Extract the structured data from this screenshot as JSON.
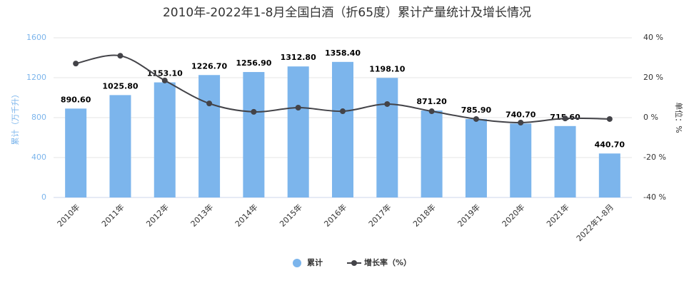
{
  "chart_data": {
    "type": "bar-line",
    "title": "2010年-2022年1-8月全国白酒（折65度）累计产量统计及增长情况",
    "categories": [
      "2010年",
      "2011年",
      "2012年",
      "2013年",
      "2014年",
      "2015年",
      "2016年",
      "2017年",
      "2018年",
      "2019年",
      "2020年",
      "2021年",
      "2022年1-8月"
    ],
    "y_label": "累计（万千升）",
    "y2_label": "单位：%",
    "series": [
      {
        "name": "累计",
        "type": "bar",
        "color": "#7cb5ec",
        "values": [
          890.6,
          1025.8,
          1153.1,
          1226.7,
          1256.9,
          1312.8,
          1358.4,
          1198.1,
          871.2,
          785.9,
          740.7,
          715.6,
          440.7
        ],
        "value_labels": [
          "890.60",
          "1025.80",
          "1153.10",
          "1226.70",
          "1256.90",
          "1312.80",
          "1358.40",
          "1198.10",
          "871.20",
          "785.90",
          "740.70",
          "715.60",
          "440.70"
        ]
      },
      {
        "name": "增长率（%）",
        "type": "line",
        "axis": "y2",
        "color": "#434348",
        "values": [
          27.1,
          31,
          18.6,
          7.1,
          2.9,
          5,
          3.2,
          6.8,
          3.2,
          -0.7,
          -2.5,
          -0.4,
          -0.7
        ]
      }
    ],
    "ylim": [
      0,
      1600
    ],
    "yticks": [
      0,
      400,
      800,
      1200,
      1600
    ],
    "y2lim": [
      -40,
      40
    ],
    "y2ticks": [
      {
        "value": -40,
        "label": "-40 %"
      },
      {
        "value": -20,
        "label": "-20 %"
      },
      {
        "value": 0,
        "label": "0 %"
      },
      {
        "value": 20,
        "label": "20 %"
      },
      {
        "value": 40,
        "label": "40 %"
      }
    ],
    "grid": true,
    "legend": "bottom"
  }
}
